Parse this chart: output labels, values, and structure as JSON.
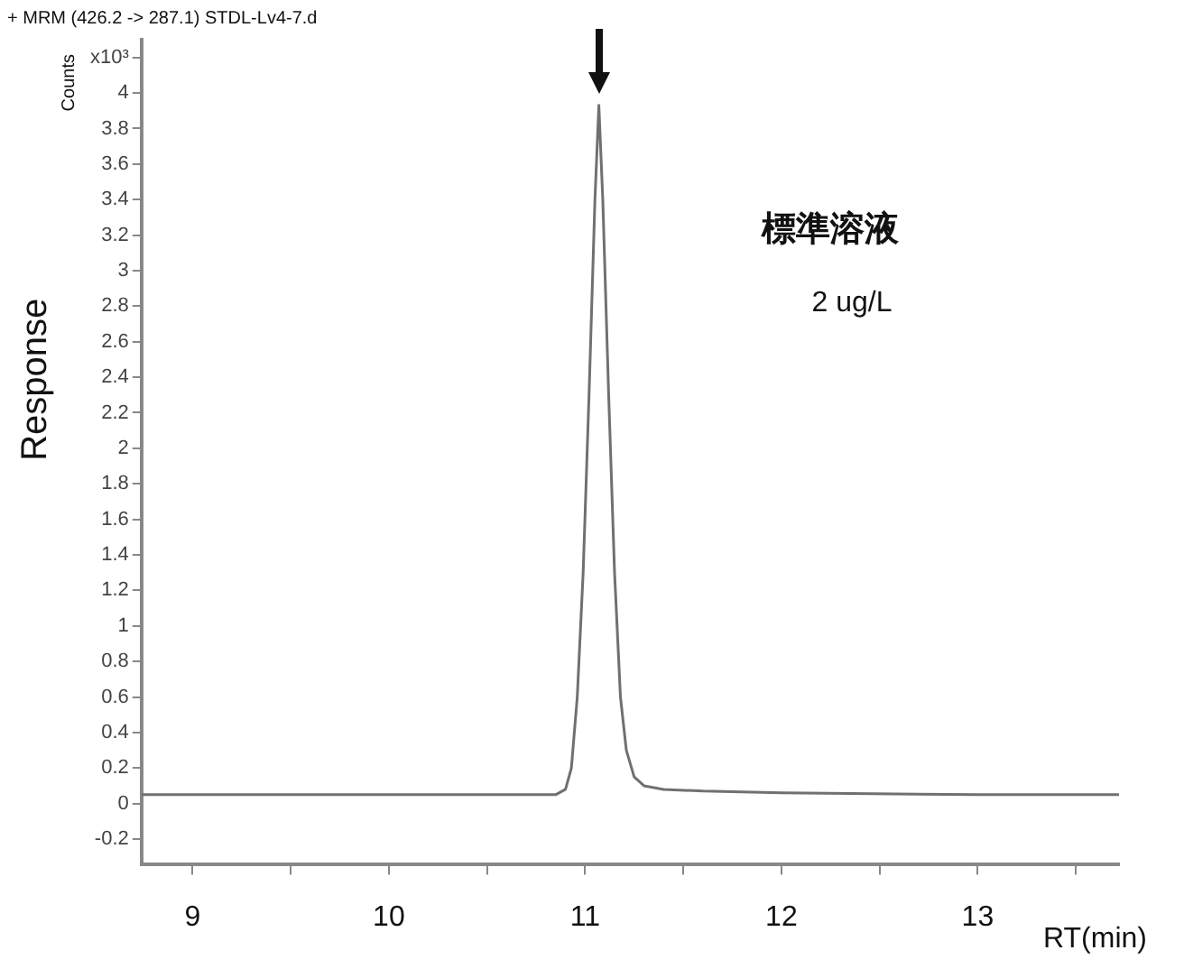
{
  "chart_data": {
    "type": "line",
    "title": "+ MRM (426.2 -> 287.1) STDL-Lv4-7.d",
    "xlabel": "RT(min)",
    "ylabel": "Response",
    "annotations": [
      "Counts",
      "標準溶液",
      "2 ug/L"
    ],
    "x": [
      8.74,
      10.5,
      10.85,
      10.9,
      10.93,
      10.96,
      10.99,
      11.02,
      11.05,
      11.07,
      11.09,
      11.12,
      11.15,
      11.18,
      11.21,
      11.25,
      11.3,
      11.4,
      11.6,
      12,
      13,
      13.72
    ],
    "series": [
      {
        "color": "#707070",
        "values": [
          0.05,
          0.05,
          0.05,
          0.08,
          0.2,
          0.6,
          1.3,
          2.3,
          3.4,
          3.93,
          3.4,
          2.3,
          1.3,
          0.6,
          0.3,
          0.15,
          0.1,
          0.08,
          0.07,
          0.06,
          0.05,
          0.05
        ]
      }
    ],
    "xlim": [
      8.74,
      13.72
    ],
    "xticks": [
      9,
      {
        "value": 9.5,
        "label": null
      },
      10,
      {
        "value": 10.5,
        "label": null
      },
      11,
      {
        "value": 11.5,
        "label": null
      },
      12,
      {
        "value": 12.5,
        "label": null
      },
      13,
      {
        "value": 13.5,
        "label": null
      }
    ],
    "ylim": [
      -0.34,
      4.3
    ],
    "yticks": [
      -0.2,
      0,
      0.2,
      0.4,
      0.6,
      0.8,
      1,
      1.2,
      1.4,
      1.6,
      1.8,
      2,
      2.2,
      2.4,
      2.6,
      2.8,
      3,
      3.2,
      3.4,
      3.6,
      3.8,
      4,
      {
        "value": 4.2,
        "label": "x10³"
      }
    ],
    "grid": false,
    "legend": false,
    "marker": "none",
    "line_style": "solid"
  }
}
